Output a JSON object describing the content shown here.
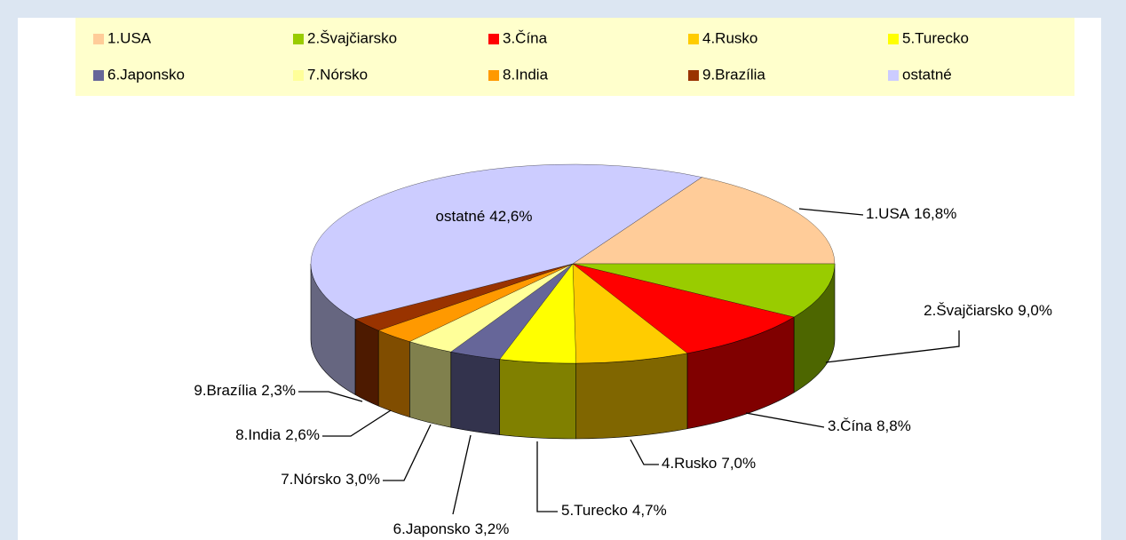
{
  "chart_data": {
    "type": "pie3d",
    "categories": [
      "1.USA",
      "2.Švajčiarsko",
      "3.Čína",
      "4.Rusko",
      "5.Turecko",
      "6.Japonsko",
      "7.Nórsko",
      "8.India",
      "9.Brazília",
      "ostatné"
    ],
    "values": [
      16.8,
      9.0,
      8.8,
      7.0,
      4.7,
      3.2,
      3.0,
      2.6,
      2.3,
      42.6
    ],
    "value_labels": [
      "16,8%",
      "9,0%",
      "8,8%",
      "7,0%",
      "4,7%",
      "3,2%",
      "3,0%",
      "2,6%",
      "2,3%",
      "42,6%"
    ],
    "colors": [
      "#ffcc99",
      "#99cc00",
      "#ff0000",
      "#ffcc00",
      "#ffff00",
      "#666699",
      "#ffff99",
      "#ff9900",
      "#993300",
      "#ccccff"
    ],
    "legend": "top"
  }
}
